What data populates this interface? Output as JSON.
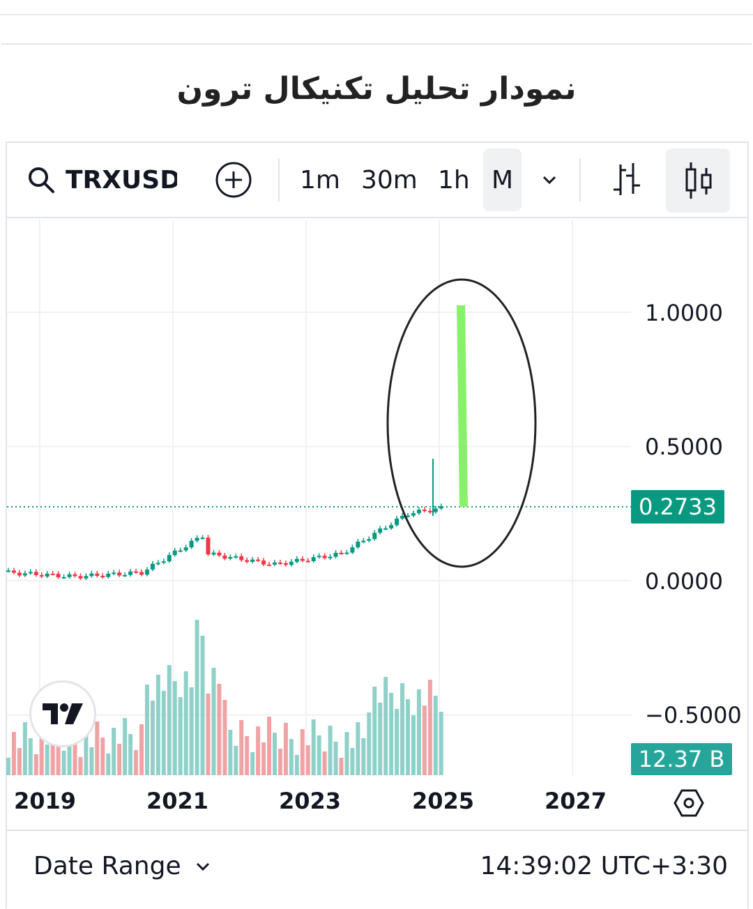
{
  "page": {
    "title": "نمودار تحلیل تکنیکال ترون"
  },
  "toolbar": {
    "symbol": "TRXUSDT",
    "timeframes": [
      "1m",
      "30m",
      "1h",
      "M"
    ],
    "active_timeframe": "M"
  },
  "chart_data": {
    "type": "candlestick",
    "symbol": "TRXUSDT",
    "interval": "M",
    "y_axis_labels": [
      "1.0000",
      "0.5000",
      "0.0000",
      "−0.5000"
    ],
    "ylim": [
      -0.5,
      1.0
    ],
    "x_axis_labels": [
      "2019",
      "2021",
      "2023",
      "2025",
      "2027"
    ],
    "last_price": "0.2733",
    "last_volume": "12.37 B",
    "grid": true,
    "colors": {
      "up": "#089981",
      "down": "#f23645",
      "vol_up": "#8fd1c9",
      "vol_down": "#f0a3a5",
      "annotation_bar": "#88f06a"
    },
    "candles_summary": {
      "2019": [
        0.03,
        0.015
      ],
      "2020": [
        0.015,
        0.03
      ],
      "2021": [
        0.03,
        0.18
      ],
      "2022": [
        0.1,
        0.06
      ],
      "2023": [
        0.06,
        0.1
      ],
      "2024": [
        0.1,
        0.25
      ],
      "2025": [
        0.25,
        0.2733
      ]
    },
    "volume_bars_note": "monthly volume histogram"
  },
  "footer": {
    "date_range_label": "Date Range",
    "clock": "14:39:02 UTC+3:30"
  }
}
